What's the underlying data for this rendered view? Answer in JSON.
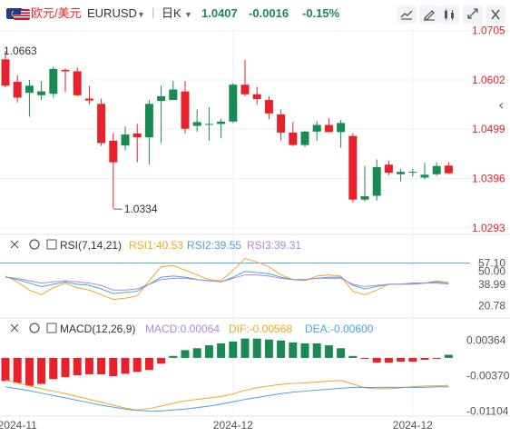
{
  "header": {
    "pair_cn": "欧元/美元",
    "symbol": "EURUSD",
    "period": "日K",
    "price": "1.0407",
    "change": "-0.0016",
    "change_pct": "-0.15%",
    "up_color": "#e8222b",
    "down_color": "#1a8a52",
    "tools": [
      "line-draw-icon",
      "pen-icon",
      "indicator-icon",
      "expand-icon",
      "close-icon"
    ]
  },
  "chart_data": [
    {
      "type": "candlestick",
      "name": "EURUSD 日K",
      "ylim": [
        1.0285,
        1.0712
      ],
      "y_ticks": [
        "1.0705",
        "1.0602",
        "1.0499",
        "1.0396",
        "1.0293"
      ],
      "annotations": {
        "high": "1.0663",
        "low": "1.0334"
      },
      "candles": [
        {
          "o": 1.0645,
          "h": 1.0663,
          "l": 1.0586,
          "c": 1.059
        },
        {
          "o": 1.0598,
          "h": 1.0612,
          "l": 1.0555,
          "c": 1.0565
        },
        {
          "o": 1.0575,
          "h": 1.0602,
          "l": 1.0525,
          "c": 1.059
        },
        {
          "o": 1.057,
          "h": 1.06,
          "l": 1.056,
          "c": 1.0578
        },
        {
          "o": 1.0573,
          "h": 1.063,
          "l": 1.0565,
          "c": 1.0625
        },
        {
          "o": 1.0623,
          "h": 1.0626,
          "l": 1.0577,
          "c": 1.062
        },
        {
          "o": 1.062,
          "h": 1.0628,
          "l": 1.0568,
          "c": 1.057
        },
        {
          "o": 1.0563,
          "h": 1.059,
          "l": 1.0551,
          "c": 1.0559
        },
        {
          "o": 1.0552,
          "h": 1.0563,
          "l": 1.0464,
          "c": 1.047
        },
        {
          "o": 1.0475,
          "h": 1.0491,
          "l": 1.0334,
          "c": 1.043
        },
        {
          "o": 1.0465,
          "h": 1.0505,
          "l": 1.0455,
          "c": 1.0488
        },
        {
          "o": 1.049,
          "h": 1.051,
          "l": 1.043,
          "c": 1.0482
        },
        {
          "o": 1.0482,
          "h": 1.056,
          "l": 1.0425,
          "c": 1.0552
        },
        {
          "o": 1.0558,
          "h": 1.059,
          "l": 1.047,
          "c": 1.0568
        },
        {
          "o": 1.056,
          "h": 1.06,
          "l": 1.056,
          "c": 1.0582
        },
        {
          "o": 1.0578,
          "h": 1.06,
          "l": 1.049,
          "c": 1.05
        },
        {
          "o": 1.0506,
          "h": 1.054,
          "l": 1.0494,
          "c": 1.0514
        },
        {
          "o": 1.051,
          "h": 1.0545,
          "l": 1.0475,
          "c": 1.051
        },
        {
          "o": 1.051,
          "h": 1.052,
          "l": 1.048,
          "c": 1.0515
        },
        {
          "o": 1.0515,
          "h": 1.0595,
          "l": 1.0512,
          "c": 1.0592
        },
        {
          "o": 1.0592,
          "h": 1.0644,
          "l": 1.0568,
          "c": 1.0572
        },
        {
          "o": 1.0572,
          "h": 1.0588,
          "l": 1.055,
          "c": 1.0562
        },
        {
          "o": 1.056,
          "h": 1.0568,
          "l": 1.052,
          "c": 1.0532
        },
        {
          "o": 1.053,
          "h": 1.054,
          "l": 1.0476,
          "c": 1.0492
        },
        {
          "o": 1.0492,
          "h": 1.0514,
          "l": 1.0464,
          "c": 1.0466
        },
        {
          "o": 1.0466,
          "h": 1.0496,
          "l": 1.0462,
          "c": 1.0494
        },
        {
          "o": 1.0494,
          "h": 1.0516,
          "l": 1.0475,
          "c": 1.0508
        },
        {
          "o": 1.0508,
          "h": 1.0522,
          "l": 1.0493,
          "c": 1.0493
        },
        {
          "o": 1.0493,
          "h": 1.0518,
          "l": 1.046,
          "c": 1.0512
        },
        {
          "o": 1.0485,
          "h": 1.049,
          "l": 1.0346,
          "c": 1.0352
        },
        {
          "o": 1.0352,
          "h": 1.0422,
          "l": 1.0348,
          "c": 1.0359
        },
        {
          "o": 1.036,
          "h": 1.0436,
          "l": 1.035,
          "c": 1.042
        },
        {
          "o": 1.0425,
          "h": 1.0433,
          "l": 1.0403,
          "c": 1.0408
        },
        {
          "o": 1.0405,
          "h": 1.0416,
          "l": 1.039,
          "c": 1.041
        },
        {
          "o": 1.0409,
          "h": 1.0416,
          "l": 1.04,
          "c": 1.041
        },
        {
          "o": 1.0398,
          "h": 1.0429,
          "l": 1.0394,
          "c": 1.0404
        },
        {
          "o": 1.0405,
          "h": 1.043,
          "l": 1.0402,
          "c": 1.0422
        },
        {
          "o": 1.0423,
          "h": 1.043,
          "l": 1.0406,
          "c": 1.0407
        }
      ]
    },
    {
      "type": "line",
      "name": "RSI(7,14,21)",
      "ylim": [
        14,
        63
      ],
      "y_ticks": [
        "57.10",
        "50.00",
        "38.99",
        "20.78"
      ],
      "legend": [
        {
          "label": "RSI(7,14,21)",
          "color": "#333333"
        },
        {
          "label": "RSI1:40.53",
          "color": "#f5a623"
        },
        {
          "label": "RSI2:39.55",
          "color": "#4aa3df"
        },
        {
          "label": "RSI3:39.31",
          "color": "#a98bd6"
        }
      ],
      "hline": 57.1,
      "series": [
        {
          "name": "RSI1",
          "values": [
            46,
            41,
            34,
            30,
            36,
            40,
            36,
            34,
            30,
            26,
            27,
            29,
            42,
            54,
            55,
            51,
            47,
            43,
            42,
            51,
            61,
            58,
            54,
            47,
            43,
            42,
            46,
            47,
            46,
            33,
            30,
            34,
            39,
            39,
            40,
            40,
            42,
            40.53
          ]
        },
        {
          "name": "RSI2",
          "values": [
            45,
            43,
            40,
            37,
            39,
            41,
            39,
            38,
            35,
            31,
            32,
            33,
            39,
            45,
            46,
            45,
            43,
            42,
            41,
            45,
            50,
            49,
            48,
            45,
            43,
            43,
            44,
            45,
            45,
            38,
            35,
            37,
            39,
            39,
            40,
            40,
            41,
            39.55
          ]
        },
        {
          "name": "RSI3",
          "values": [
            45,
            44,
            42,
            40,
            41,
            42,
            41,
            40,
            38,
            34,
            34,
            35,
            39,
            43,
            44,
            44,
            43,
            42,
            41,
            44,
            47,
            47,
            46,
            44,
            43,
            43,
            44,
            44,
            44,
            39,
            37,
            38,
            39,
            39,
            39,
            40,
            40,
            39.31
          ]
        }
      ]
    },
    {
      "type": "bar+line",
      "name": "MACD(12,26,9)",
      "ylim": [
        -0.0115,
        0.0045
      ],
      "y_ticks": [
        "0.00364",
        "-0.00370",
        "-0.01104"
      ],
      "legend": [
        {
          "label": "MACD(12,26,9)",
          "color": "#333333"
        },
        {
          "label": "MACD:0.00064",
          "color": "#a98bd6"
        },
        {
          "label": "DIF:-0.00568",
          "color": "#f5a623"
        },
        {
          "label": "DEA:-0.00600",
          "color": "#4aa3df"
        }
      ],
      "macd_bars": [
        -0.0048,
        -0.0052,
        -0.0058,
        -0.0054,
        -0.0044,
        -0.004,
        -0.0036,
        -0.0034,
        -0.0034,
        -0.0038,
        -0.0033,
        -0.0029,
        -0.0025,
        -0.0012,
        0.0004,
        0.0016,
        0.002,
        0.0026,
        0.003,
        0.0034,
        0.004,
        0.004,
        0.0038,
        0.0036,
        0.0032,
        0.003,
        0.003,
        0.0026,
        0.002,
        0.0004,
        -0.0002,
        -0.001,
        -0.001,
        -0.0008,
        -0.0008,
        -0.0004,
        -0.0002,
        0.00064
      ],
      "series": [
        {
          "name": "DIF",
          "values": [
            -0.0046,
            -0.0052,
            -0.0058,
            -0.0064,
            -0.0069,
            -0.0074,
            -0.008,
            -0.0086,
            -0.0092,
            -0.0098,
            -0.0104,
            -0.0108,
            -0.0105,
            -0.01,
            -0.0094,
            -0.0089,
            -0.0086,
            -0.0083,
            -0.008,
            -0.0075,
            -0.0067,
            -0.0062,
            -0.0058,
            -0.0055,
            -0.0053,
            -0.0052,
            -0.005,
            -0.0048,
            -0.0047,
            -0.0054,
            -0.0062,
            -0.0064,
            -0.0064,
            -0.0062,
            -0.006,
            -0.0058,
            -0.0058,
            -0.00568
          ]
        },
        {
          "name": "DEA",
          "values": [
            -0.006,
            -0.0064,
            -0.0068,
            -0.0073,
            -0.0078,
            -0.0083,
            -0.0088,
            -0.0093,
            -0.0098,
            -0.0102,
            -0.0106,
            -0.0109,
            -0.011,
            -0.011,
            -0.0108,
            -0.0106,
            -0.0103,
            -0.01,
            -0.0096,
            -0.0091,
            -0.0086,
            -0.0082,
            -0.0078,
            -0.0074,
            -0.0071,
            -0.0069,
            -0.0067,
            -0.0065,
            -0.0063,
            -0.0061,
            -0.0061,
            -0.0061,
            -0.0061,
            -0.0061,
            -0.0061,
            -0.0061,
            -0.006,
            -0.006
          ]
        }
      ]
    }
  ],
  "x_axis": {
    "labels": [
      "2024-11",
      "2024-12",
      "2024-12"
    ],
    "label_index": [
      1,
      19,
      34
    ]
  }
}
